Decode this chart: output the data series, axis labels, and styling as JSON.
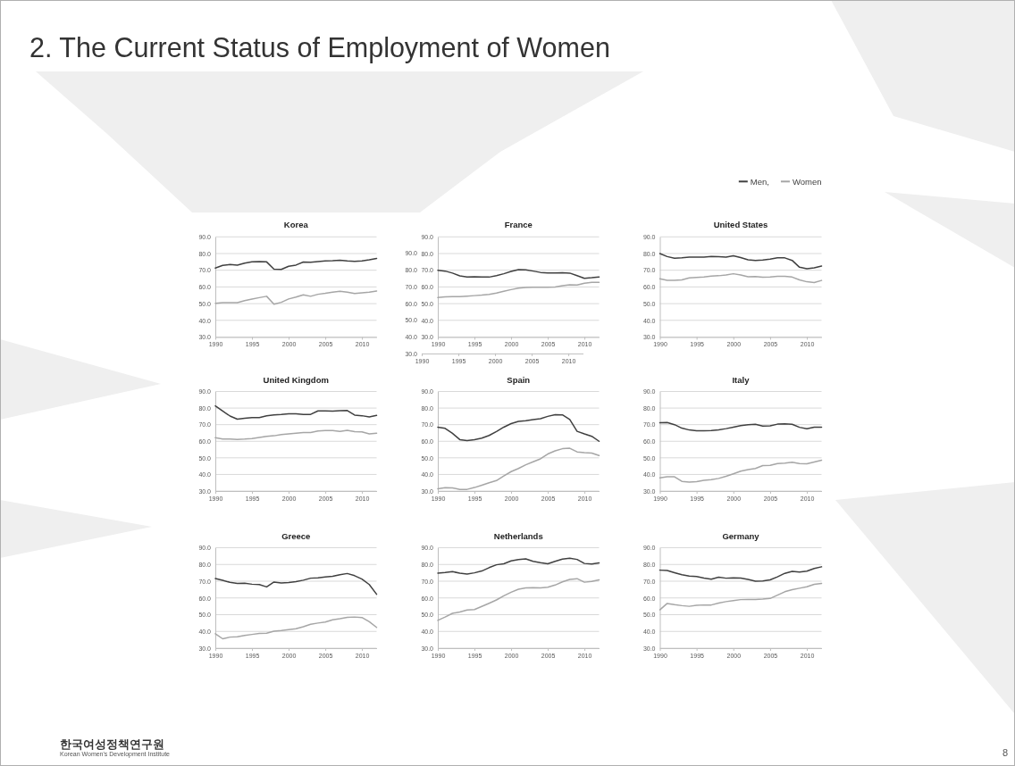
{
  "chart_data": [
    {
      "type": "other",
      "title": "2. The Current Status of Employment of Women",
      "annotations": [
        "한국여성정책연구원",
        "Korean Women's Development Institute",
        "8"
      ]
    },
    {
      "type": "line",
      "title": "Korea",
      "x": [
        1990,
        1991,
        1992,
        1993,
        1994,
        1995,
        1996,
        1997,
        1998,
        1999,
        2000,
        2001,
        2002,
        2003,
        2004,
        2005,
        2006,
        2007,
        2008,
        2009,
        2010,
        2011,
        2012
      ],
      "xlim": [
        1990,
        2012
      ],
      "xticks": [
        1990,
        1995,
        2000,
        2005,
        2010
      ],
      "ylim": [
        30,
        90
      ],
      "yticks": [
        {
          "value": 30,
          "label": "30.0"
        },
        {
          "value": 40,
          "label": "40.0"
        },
        {
          "value": 50,
          "label": "50.0"
        },
        {
          "value": 60,
          "label": "60.0"
        },
        {
          "value": 70,
          "label": "70.0"
        },
        {
          "value": 80,
          "label": "80.0"
        },
        {
          "value": 90,
          "label": "90.0"
        }
      ],
      "grid": "y",
      "series": [
        {
          "color": "#404040",
          "values": [
            71.3,
            72.9,
            73.4,
            73.1,
            74.3,
            75.1,
            75.2,
            75.0,
            70.6,
            70.5,
            72.4,
            73.1,
            74.9,
            74.8,
            75.2,
            75.6,
            75.7,
            76.0,
            75.6,
            75.3,
            75.6,
            76.2,
            77.1
          ]
        },
        {
          "color": "#a6a6a6",
          "values": [
            50.2,
            50.6,
            50.6,
            50.6,
            51.8,
            52.7,
            53.6,
            54.4,
            49.6,
            50.8,
            52.8,
            53.9,
            55.3,
            54.4,
            55.6,
            56.2,
            56.9,
            57.4,
            56.9,
            56.1,
            56.5,
            56.9,
            57.6
          ]
        }
      ]
    },
    {
      "type": "line",
      "title": "France",
      "x": [
        1990,
        1991,
        1992,
        1993,
        1994,
        1995,
        1996,
        1997,
        1998,
        1999,
        2000,
        2001,
        2002,
        2003,
        2004,
        2005,
        2006,
        2007,
        2008,
        2009,
        2010,
        2011,
        2012
      ],
      "xlim": [
        1990,
        2012
      ],
      "xticks": [
        1990,
        1995,
        2000,
        2005,
        2010
      ],
      "ylim": [
        30,
        90
      ],
      "yticks": [
        {
          "value": 30,
          "label": "30.0"
        },
        {
          "value": 40,
          "label": "40.0"
        },
        {
          "value": 50,
          "label": "50.0"
        },
        {
          "value": 60,
          "label": "60.0"
        },
        {
          "value": 70,
          "label": "70.0"
        },
        {
          "value": 80,
          "label": "80.0"
        },
        {
          "value": 90,
          "label": "90.0"
        }
      ],
      "grid": "y",
      "series": [
        {
          "color": "#404040",
          "values": [
            70.0,
            69.5,
            68.3,
            66.6,
            66.0,
            66.1,
            66.0,
            65.9,
            66.8,
            67.9,
            69.3,
            70.4,
            70.3,
            69.5,
            68.7,
            68.4,
            68.4,
            68.5,
            68.3,
            66.8,
            65.2,
            65.5,
            66.0
          ]
        },
        {
          "color": "#a6a6a6",
          "values": [
            53.6,
            54.0,
            54.2,
            54.2,
            54.5,
            54.8,
            55.1,
            55.5,
            56.3,
            57.4,
            58.4,
            59.3,
            59.7,
            59.8,
            59.8,
            59.8,
            60.0,
            60.8,
            61.3,
            61.2,
            62.2,
            62.7,
            62.8
          ]
        }
      ]
    },
    {
      "type": "line",
      "xlim": [
        1990,
        2012
      ],
      "xticks": [
        1990,
        1995,
        2000,
        2005,
        2010
      ],
      "ylim": [
        30,
        90
      ],
      "yticks": [
        {
          "value": 30,
          "label": "30.0"
        },
        {
          "value": 40,
          "label": "40.0"
        },
        {
          "value": 50,
          "label": "50.0"
        },
        {
          "value": 60,
          "label": "60.0"
        },
        {
          "value": 70,
          "label": "70.0"
        },
        {
          "value": 80,
          "label": "80.0"
        },
        {
          "value": 90,
          "label": "90.0"
        }
      ]
    },
    {
      "type": "line",
      "title": "United States",
      "legend": "top right",
      "x": [
        1990,
        1991,
        1992,
        1993,
        1994,
        1995,
        1996,
        1997,
        1998,
        1999,
        2000,
        2001,
        2002,
        2003,
        2004,
        2005,
        2006,
        2007,
        2008,
        2009,
        2010,
        2011,
        2012
      ],
      "xlim": [
        1990,
        2012
      ],
      "xticks": [
        1990,
        1995,
        2000,
        2005,
        2010
      ],
      "ylim": [
        30,
        90
      ],
      "yticks": [
        {
          "value": 30,
          "label": "30.0"
        },
        {
          "value": 40,
          "label": "40.0"
        },
        {
          "value": 50,
          "label": "50.0"
        },
        {
          "value": 60,
          "label": "60.0"
        },
        {
          "value": 70,
          "label": "70.0"
        },
        {
          "value": 80,
          "label": "80.0"
        },
        {
          "value": 90,
          "label": "90.0"
        }
      ],
      "grid": "y",
      "series": [
        {
          "name": "Men,",
          "color": "#404040",
          "values": [
            80.0,
            78.2,
            77.2,
            77.4,
            77.8,
            77.9,
            77.8,
            78.2,
            78.1,
            77.9,
            78.7,
            77.6,
            76.3,
            75.9,
            76.1,
            76.7,
            77.4,
            77.4,
            75.9,
            71.8,
            70.9,
            71.4,
            72.5
          ]
        },
        {
          "name": "Women",
          "color": "#a6a6a6",
          "values": [
            64.9,
            64.0,
            63.9,
            64.2,
            65.4,
            65.7,
            66.0,
            66.5,
            66.7,
            67.2,
            67.9,
            67.2,
            66.1,
            66.2,
            65.8,
            65.9,
            66.3,
            66.4,
            65.9,
            64.2,
            63.1,
            62.6,
            63.9
          ]
        }
      ]
    },
    {
      "type": "line",
      "title": "United Kingdom",
      "x": [
        1990,
        1991,
        1992,
        1993,
        1994,
        1995,
        1996,
        1997,
        1998,
        1999,
        2000,
        2001,
        2002,
        2003,
        2004,
        2005,
        2006,
        2007,
        2008,
        2009,
        2010,
        2011,
        2012
      ],
      "xlim": [
        1990,
        2012
      ],
      "xticks": [
        1990,
        1995,
        2000,
        2005,
        2010
      ],
      "ylim": [
        30,
        90
      ],
      "yticks": [
        {
          "value": 30,
          "label": "30.0"
        },
        {
          "value": 40,
          "label": "40.0"
        },
        {
          "value": 50,
          "label": "50.0"
        },
        {
          "value": 60,
          "label": "60.0"
        },
        {
          "value": 70,
          "label": "70.0"
        },
        {
          "value": 80,
          "label": "80.0"
        },
        {
          "value": 90,
          "label": "90.0"
        }
      ],
      "grid": "y",
      "series": [
        {
          "color": "#404040",
          "values": [
            81.3,
            78.2,
            75.2,
            73.3,
            73.8,
            74.3,
            74.3,
            75.3,
            75.9,
            76.1,
            76.6,
            76.6,
            76.1,
            76.2,
            78.3,
            78.3,
            78.1,
            78.4,
            78.5,
            75.8,
            75.4,
            74.7,
            75.6
          ]
        },
        {
          "color": "#a6a6a6",
          "values": [
            62.1,
            61.4,
            61.3,
            61.1,
            61.3,
            61.6,
            62.3,
            63.0,
            63.3,
            64.0,
            64.5,
            64.9,
            65.2,
            65.3,
            66.2,
            66.4,
            66.4,
            65.9,
            66.6,
            65.8,
            65.6,
            64.4,
            64.9
          ]
        }
      ]
    },
    {
      "type": "line",
      "title": "Spain",
      "x": [
        1990,
        1991,
        1992,
        1993,
        1994,
        1995,
        1996,
        1997,
        1998,
        1999,
        2000,
        2001,
        2002,
        2003,
        2004,
        2005,
        2006,
        2007,
        2008,
        2009,
        2010,
        2011,
        2012
      ],
      "xlim": [
        1990,
        2012
      ],
      "xticks": [
        1990,
        1995,
        2000,
        2005,
        2010
      ],
      "ylim": [
        30,
        90
      ],
      "yticks": [
        {
          "value": 30,
          "label": "30.0"
        },
        {
          "value": 40,
          "label": "40.0"
        },
        {
          "value": 50,
          "label": "50.0"
        },
        {
          "value": 60,
          "label": "60.0"
        },
        {
          "value": 70,
          "label": "70.0"
        },
        {
          "value": 80,
          "label": "80.0"
        },
        {
          "value": 90,
          "label": "90.0"
        }
      ],
      "grid": "y",
      "series": [
        {
          "color": "#404040",
          "values": [
            68.5,
            67.8,
            64.8,
            61.0,
            60.4,
            61.0,
            61.9,
            63.5,
            65.9,
            68.5,
            70.6,
            72.0,
            72.4,
            73.0,
            73.6,
            75.0,
            76.0,
            75.9,
            73.1,
            66.0,
            64.4,
            63.0,
            60.0
          ]
        },
        {
          "color": "#a6a6a6",
          "values": [
            31.4,
            32.0,
            31.9,
            31.0,
            31.0,
            32.1,
            33.5,
            35.0,
            36.3,
            39.1,
            41.7,
            43.6,
            45.8,
            47.6,
            49.4,
            52.3,
            54.2,
            55.5,
            55.8,
            53.6,
            53.1,
            52.9,
            51.4
          ]
        }
      ]
    },
    {
      "type": "line",
      "title": "Italy",
      "x": [
        1990,
        1991,
        1992,
        1993,
        1994,
        1995,
        1996,
        1997,
        1998,
        1999,
        2000,
        2001,
        2002,
        2003,
        2004,
        2005,
        2006,
        2007,
        2008,
        2009,
        2010,
        2011,
        2012
      ],
      "xlim": [
        1990,
        2012
      ],
      "xticks": [
        1990,
        1995,
        2000,
        2005,
        2010
      ],
      "ylim": [
        30,
        90
      ],
      "yticks": [
        {
          "value": 30,
          "label": "30.0"
        },
        {
          "value": 40,
          "label": "40.0"
        },
        {
          "value": 50,
          "label": "50.0"
        },
        {
          "value": 60,
          "label": "60.0"
        },
        {
          "value": 70,
          "label": "70.0"
        },
        {
          "value": 80,
          "label": "80.0"
        },
        {
          "value": 90,
          "label": "90.0"
        }
      ],
      "grid": "y",
      "series": [
        {
          "color": "#404040",
          "values": [
            71.1,
            71.3,
            70.0,
            67.9,
            66.8,
            66.3,
            66.3,
            66.5,
            66.9,
            67.6,
            68.5,
            69.4,
            70.0,
            70.2,
            69.1,
            69.3,
            70.3,
            70.5,
            70.2,
            68.4,
            67.5,
            68.5,
            68.5
          ]
        },
        {
          "color": "#a6a6a6",
          "values": [
            38.0,
            38.6,
            38.6,
            35.8,
            35.4,
            35.6,
            36.4,
            36.8,
            37.6,
            38.9,
            40.4,
            42.0,
            42.9,
            43.6,
            45.3,
            45.5,
            46.6,
            46.8,
            47.3,
            46.6,
            46.4,
            47.5,
            48.6
          ]
        }
      ]
    },
    {
      "type": "line",
      "title": "Greece",
      "x": [
        1990,
        1991,
        1992,
        1993,
        1994,
        1995,
        1996,
        1997,
        1998,
        1999,
        2000,
        2001,
        2002,
        2003,
        2004,
        2005,
        2006,
        2007,
        2008,
        2009,
        2010,
        2011,
        2012
      ],
      "xlim": [
        1990,
        2012
      ],
      "xticks": [
        1990,
        1995,
        2000,
        2005,
        2010
      ],
      "ylim": [
        30,
        90
      ],
      "yticks": [
        {
          "value": 30,
          "label": "30.0"
        },
        {
          "value": 40,
          "label": "40.0"
        },
        {
          "value": 50,
          "label": "50.0"
        },
        {
          "value": 60,
          "label": "60.0"
        },
        {
          "value": 70,
          "label": "70.0"
        },
        {
          "value": 80,
          "label": "80.0"
        },
        {
          "value": 90,
          "label": "90.0"
        }
      ],
      "grid": "y",
      "series": [
        {
          "color": "#404040",
          "values": [
            71.6,
            70.5,
            69.3,
            68.7,
            68.8,
            68.2,
            68.0,
            66.6,
            69.5,
            68.9,
            69.2,
            69.7,
            70.6,
            71.8,
            72.0,
            72.5,
            72.9,
            73.9,
            74.6,
            73.3,
            71.3,
            68.0,
            62.2
          ]
        },
        {
          "color": "#a6a6a6",
          "values": [
            38.6,
            35.6,
            36.6,
            36.8,
            37.6,
            38.2,
            38.8,
            38.9,
            40.1,
            40.5,
            41.1,
            41.6,
            42.8,
            44.3,
            45.0,
            45.6,
            46.9,
            47.6,
            48.4,
            48.6,
            48.3,
            45.8,
            42.4
          ]
        }
      ]
    },
    {
      "type": "line",
      "title": "Netherlands",
      "x": [
        1990,
        1991,
        1992,
        1993,
        1994,
        1995,
        1996,
        1997,
        1998,
        1999,
        2000,
        2001,
        2002,
        2003,
        2004,
        2005,
        2006,
        2007,
        2008,
        2009,
        2010,
        2011,
        2012
      ],
      "xlim": [
        1990,
        2012
      ],
      "xticks": [
        1990,
        1995,
        2000,
        2005,
        2010
      ],
      "ylim": [
        30,
        90
      ],
      "yticks": [
        {
          "value": 30,
          "label": "30.0"
        },
        {
          "value": 40,
          "label": "40.0"
        },
        {
          "value": 50,
          "label": "50.0"
        },
        {
          "value": 60,
          "label": "60.0"
        },
        {
          "value": 70,
          "label": "70.0"
        },
        {
          "value": 80,
          "label": "80.0"
        },
        {
          "value": 90,
          "label": "90.0"
        }
      ],
      "grid": "y",
      "series": [
        {
          "color": "#404040",
          "values": [
            74.8,
            75.2,
            75.7,
            74.8,
            74.3,
            75.0,
            76.1,
            78.1,
            79.8,
            80.4,
            82.1,
            82.9,
            83.3,
            81.9,
            81.1,
            80.4,
            81.9,
            83.2,
            83.7,
            83.0,
            80.6,
            80.3,
            80.9
          ]
        },
        {
          "color": "#a6a6a6",
          "values": [
            46.6,
            48.6,
            50.8,
            51.6,
            52.8,
            53.1,
            54.9,
            56.8,
            58.8,
            61.3,
            63.4,
            65.2,
            66.0,
            66.1,
            66.0,
            66.4,
            67.7,
            69.6,
            71.1,
            71.5,
            69.4,
            69.9,
            70.8
          ]
        }
      ]
    },
    {
      "type": "line",
      "title": "Germany",
      "x": [
        1990,
        1991,
        1992,
        1993,
        1994,
        1995,
        1996,
        1997,
        1998,
        1999,
        2000,
        2001,
        2002,
        2003,
        2004,
        2005,
        2006,
        2007,
        2008,
        2009,
        2010,
        2011,
        2012
      ],
      "xlim": [
        1990,
        2012
      ],
      "xticks": [
        1990,
        1995,
        2000,
        2005,
        2010
      ],
      "ylim": [
        30,
        90
      ],
      "yticks": [
        {
          "value": 30,
          "label": "30.0"
        },
        {
          "value": 40,
          "label": "40.0"
        },
        {
          "value": 50,
          "label": "50.0"
        },
        {
          "value": 60,
          "label": "60.0"
        },
        {
          "value": 70,
          "label": "70.0"
        },
        {
          "value": 80,
          "label": "80.0"
        },
        {
          "value": 90,
          "label": "90.0"
        }
      ],
      "grid": "y",
      "series": [
        {
          "color": "#404040",
          "values": [
            76.6,
            76.4,
            75.1,
            73.9,
            73.1,
            72.8,
            71.9,
            71.2,
            72.4,
            71.8,
            72.0,
            71.9,
            71.1,
            70.0,
            70.1,
            70.8,
            72.6,
            74.7,
            75.9,
            75.5,
            76.0,
            77.6,
            78.6
          ]
        },
        {
          "color": "#a6a6a6",
          "values": [
            52.9,
            56.7,
            56.0,
            55.4,
            55.0,
            55.6,
            55.8,
            55.8,
            56.9,
            57.8,
            58.4,
            59.0,
            59.1,
            59.1,
            59.3,
            59.7,
            61.7,
            63.7,
            64.9,
            65.8,
            66.7,
            68.1,
            68.7
          ]
        }
      ]
    }
  ]
}
